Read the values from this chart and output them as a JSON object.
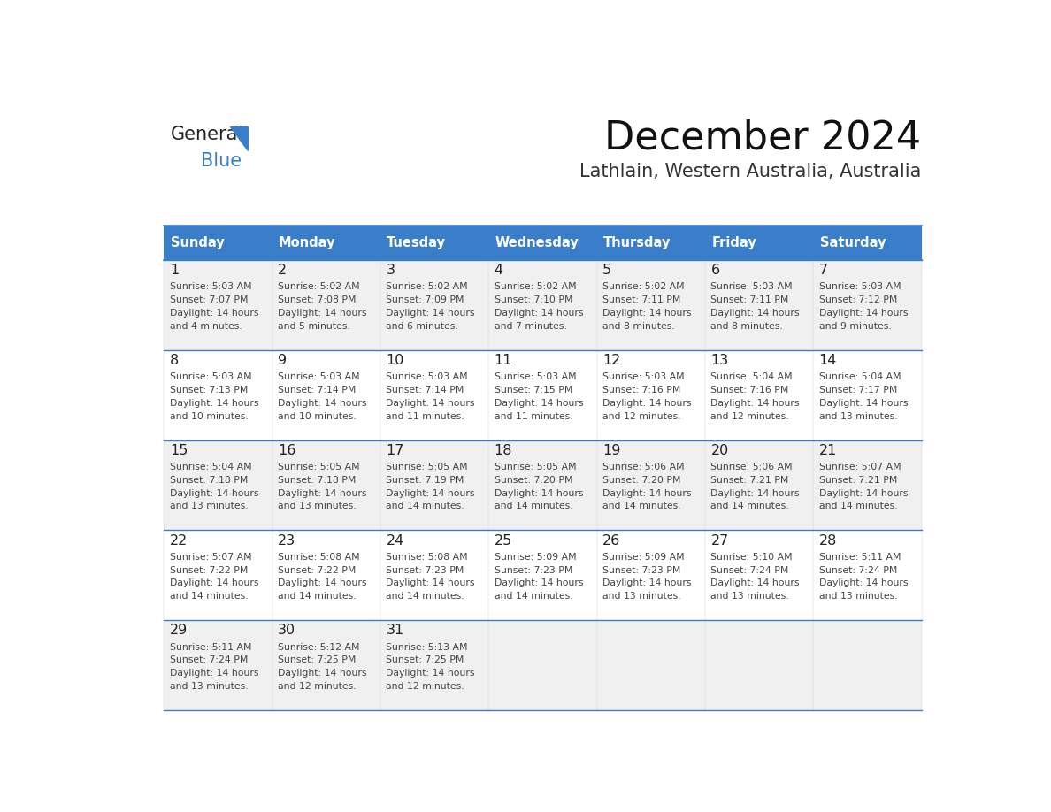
{
  "title": "December 2024",
  "subtitle": "Lathlain, Western Australia, Australia",
  "header_color": "#3A7DC9",
  "header_text_color": "#FFFFFF",
  "cell_bg_odd": "#F0F0F0",
  "cell_bg_even": "#FFFFFF",
  "border_color": "#3A7DC9",
  "line_color": "#3A7DC9",
  "day_names": [
    "Sunday",
    "Monday",
    "Tuesday",
    "Wednesday",
    "Thursday",
    "Friday",
    "Saturday"
  ],
  "logo_color1": "#222222",
  "logo_color2": "#3A7DC9",
  "weeks": [
    [
      {
        "day": 1,
        "sunrise": "5:03 AM",
        "sunset": "7:07 PM",
        "daylight": "14 hours and 4 minutes."
      },
      {
        "day": 2,
        "sunrise": "5:02 AM",
        "sunset": "7:08 PM",
        "daylight": "14 hours and 5 minutes."
      },
      {
        "day": 3,
        "sunrise": "5:02 AM",
        "sunset": "7:09 PM",
        "daylight": "14 hours and 6 minutes."
      },
      {
        "day": 4,
        "sunrise": "5:02 AM",
        "sunset": "7:10 PM",
        "daylight": "14 hours and 7 minutes."
      },
      {
        "day": 5,
        "sunrise": "5:02 AM",
        "sunset": "7:11 PM",
        "daylight": "14 hours and 8 minutes."
      },
      {
        "day": 6,
        "sunrise": "5:03 AM",
        "sunset": "7:11 PM",
        "daylight": "14 hours and 8 minutes."
      },
      {
        "day": 7,
        "sunrise": "5:03 AM",
        "sunset": "7:12 PM",
        "daylight": "14 hours and 9 minutes."
      }
    ],
    [
      {
        "day": 8,
        "sunrise": "5:03 AM",
        "sunset": "7:13 PM",
        "daylight": "14 hours and 10 minutes."
      },
      {
        "day": 9,
        "sunrise": "5:03 AM",
        "sunset": "7:14 PM",
        "daylight": "14 hours and 10 minutes."
      },
      {
        "day": 10,
        "sunrise": "5:03 AM",
        "sunset": "7:14 PM",
        "daylight": "14 hours and 11 minutes."
      },
      {
        "day": 11,
        "sunrise": "5:03 AM",
        "sunset": "7:15 PM",
        "daylight": "14 hours and 11 minutes."
      },
      {
        "day": 12,
        "sunrise": "5:03 AM",
        "sunset": "7:16 PM",
        "daylight": "14 hours and 12 minutes."
      },
      {
        "day": 13,
        "sunrise": "5:04 AM",
        "sunset": "7:16 PM",
        "daylight": "14 hours and 12 minutes."
      },
      {
        "day": 14,
        "sunrise": "5:04 AM",
        "sunset": "7:17 PM",
        "daylight": "14 hours and 13 minutes."
      }
    ],
    [
      {
        "day": 15,
        "sunrise": "5:04 AM",
        "sunset": "7:18 PM",
        "daylight": "14 hours and 13 minutes."
      },
      {
        "day": 16,
        "sunrise": "5:05 AM",
        "sunset": "7:18 PM",
        "daylight": "14 hours and 13 minutes."
      },
      {
        "day": 17,
        "sunrise": "5:05 AM",
        "sunset": "7:19 PM",
        "daylight": "14 hours and 14 minutes."
      },
      {
        "day": 18,
        "sunrise": "5:05 AM",
        "sunset": "7:20 PM",
        "daylight": "14 hours and 14 minutes."
      },
      {
        "day": 19,
        "sunrise": "5:06 AM",
        "sunset": "7:20 PM",
        "daylight": "14 hours and 14 minutes."
      },
      {
        "day": 20,
        "sunrise": "5:06 AM",
        "sunset": "7:21 PM",
        "daylight": "14 hours and 14 minutes."
      },
      {
        "day": 21,
        "sunrise": "5:07 AM",
        "sunset": "7:21 PM",
        "daylight": "14 hours and 14 minutes."
      }
    ],
    [
      {
        "day": 22,
        "sunrise": "5:07 AM",
        "sunset": "7:22 PM",
        "daylight": "14 hours and 14 minutes."
      },
      {
        "day": 23,
        "sunrise": "5:08 AM",
        "sunset": "7:22 PM",
        "daylight": "14 hours and 14 minutes."
      },
      {
        "day": 24,
        "sunrise": "5:08 AM",
        "sunset": "7:23 PM",
        "daylight": "14 hours and 14 minutes."
      },
      {
        "day": 25,
        "sunrise": "5:09 AM",
        "sunset": "7:23 PM",
        "daylight": "14 hours and 14 minutes."
      },
      {
        "day": 26,
        "sunrise": "5:09 AM",
        "sunset": "7:23 PM",
        "daylight": "14 hours and 13 minutes."
      },
      {
        "day": 27,
        "sunrise": "5:10 AM",
        "sunset": "7:24 PM",
        "daylight": "14 hours and 13 minutes."
      },
      {
        "day": 28,
        "sunrise": "5:11 AM",
        "sunset": "7:24 PM",
        "daylight": "14 hours and 13 minutes."
      }
    ],
    [
      {
        "day": 29,
        "sunrise": "5:11 AM",
        "sunset": "7:24 PM",
        "daylight": "14 hours and 13 minutes."
      },
      {
        "day": 30,
        "sunrise": "5:12 AM",
        "sunset": "7:25 PM",
        "daylight": "14 hours and 12 minutes."
      },
      {
        "day": 31,
        "sunrise": "5:13 AM",
        "sunset": "7:25 PM",
        "daylight": "14 hours and 12 minutes."
      },
      null,
      null,
      null,
      null
    ]
  ]
}
